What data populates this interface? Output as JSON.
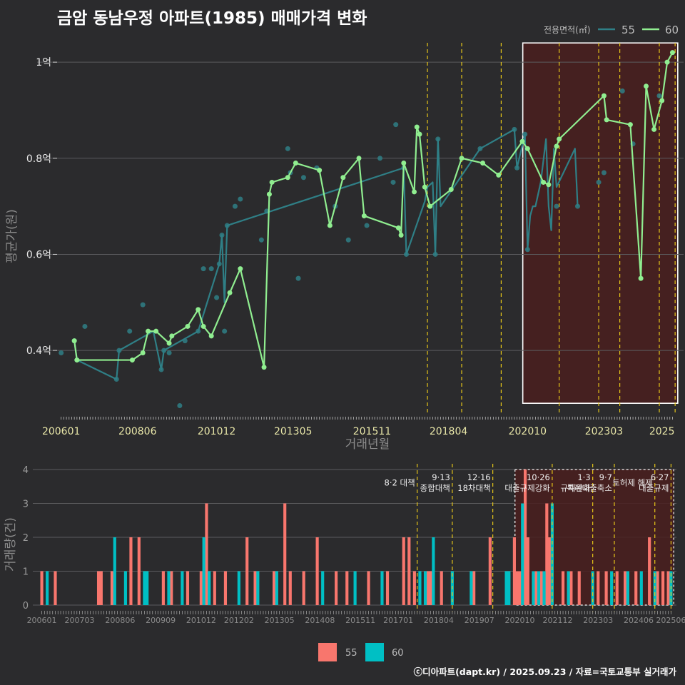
{
  "title": "금암 동남우정 아파트(1985) 매매가격 변화",
  "source": "ⓒ디아파트(dapt.kr) / 2025.09.23 / 자료=국토교통부 실거래가",
  "colors": {
    "s55_line": "#2f7f86",
    "s60_line": "#90ee90",
    "s55_bar": "#f8766d",
    "s60_bar": "#00bfc4",
    "event_line": "#e6c619",
    "highlight_box": "#4a1f1f",
    "grid": "#5b5b5e",
    "axis_text": "#e8e8e8",
    "tick_label_main": "#e8e6a8"
  },
  "chart_data": [
    {
      "type": "line",
      "title": "",
      "xlabel": "거래년월",
      "ylabel": "평균가(원)",
      "ylim": [
        0.265,
        1.07
      ],
      "yticks": [
        0.4,
        0.6,
        0.8,
        1.0
      ],
      "ytick_labels": [
        "0.4억",
        "0.6억",
        "0.8억",
        "1억"
      ],
      "xtick_labels": [
        "200601",
        "200806",
        "201012",
        "201305",
        "201511",
        "201804",
        "202010",
        "202303",
        "2025"
      ],
      "legend_title": "전용면적(㎡)",
      "legend_position": "top-right",
      "grid": true,
      "event_lines": [
        "2017-08",
        "2018-09",
        "2019-12",
        "2021-10",
        "2023-01",
        "2023-09",
        "2024-12",
        "2025-06"
      ],
      "highlight": {
        "x_start": "2020-09",
        "x_end": "2025-07",
        "y_start": 0.29,
        "y_end": 1.04
      },
      "series": [
        {
          "name": "55",
          "line": [
            [
              "2006-06",
              0.42
            ],
            [
              "2006-07",
              0.38
            ],
            [
              "2007-10",
              0.34
            ],
            [
              "2007-11",
              0.4
            ],
            [
              "2008-12",
              0.44
            ],
            [
              "2009-03",
              0.36
            ],
            [
              "2009-04",
              0.4
            ],
            [
              "2010-05",
              0.44
            ],
            [
              "2011-01",
              0.58
            ],
            [
              "2011-02",
              0.64
            ],
            [
              "2011-03",
              0.5
            ],
            [
              "2011-04",
              0.66
            ],
            [
              "2016-11",
              0.78
            ],
            [
              "2016-12",
              0.6
            ],
            [
              "2017-07",
              0.71
            ],
            [
              "2017-08",
              0.74
            ],
            [
              "2017-10",
              0.75
            ],
            [
              "2017-11",
              0.6
            ],
            [
              "2017-12",
              0.84
            ],
            [
              "2018-01",
              0.7
            ],
            [
              "2019-04",
              0.82
            ],
            [
              "2020-05",
              0.86
            ],
            [
              "2020-06",
              0.78
            ],
            [
              "2020-09",
              0.85
            ],
            [
              "2020-10",
              0.61
            ],
            [
              "2020-11",
              0.68
            ],
            [
              "2020-12",
              0.7
            ],
            [
              "2021-01",
              0.7
            ],
            [
              "2021-03",
              0.75
            ],
            [
              "2021-05",
              0.84
            ],
            [
              "2021-06",
              0.7
            ],
            [
              "2021-07",
              0.65
            ],
            [
              "2021-08",
              0.82
            ],
            [
              "2021-09",
              0.74
            ],
            [
              "2022-04",
              0.82
            ],
            [
              "2022-05",
              0.7
            ]
          ],
          "points": [
            [
              "2006-01",
              0.395
            ],
            [
              "2006-06",
              0.42
            ],
            [
              "2006-07",
              0.38
            ],
            [
              "2006-10",
              0.45
            ],
            [
              "2007-10",
              0.34
            ],
            [
              "2007-11",
              0.4
            ],
            [
              "2008-03",
              0.44
            ],
            [
              "2008-08",
              0.495
            ],
            [
              "2009-03",
              0.36
            ],
            [
              "2009-04",
              0.4
            ],
            [
              "2009-06",
              0.395
            ],
            [
              "2009-10",
              0.285
            ],
            [
              "2009-12",
              0.42
            ],
            [
              "2010-05",
              0.44
            ],
            [
              "2010-07",
              0.57
            ],
            [
              "2010-10",
              0.57
            ],
            [
              "2010-12",
              0.51
            ],
            [
              "2011-01",
              0.58
            ],
            [
              "2011-02",
              0.64
            ],
            [
              "2011-03",
              0.44
            ],
            [
              "2011-04",
              0.66
            ],
            [
              "2011-07",
              0.7
            ],
            [
              "2011-09",
              0.715
            ],
            [
              "2012-05",
              0.63
            ],
            [
              "2012-07",
              0.69
            ],
            [
              "2013-03",
              0.82
            ],
            [
              "2013-04",
              0.77
            ],
            [
              "2013-07",
              0.55
            ],
            [
              "2013-09",
              0.76
            ],
            [
              "2014-02",
              0.78
            ],
            [
              "2014-09",
              0.7
            ],
            [
              "2015-02",
              0.63
            ],
            [
              "2015-09",
              0.66
            ],
            [
              "2016-02",
              0.8
            ],
            [
              "2016-07",
              0.75
            ],
            [
              "2016-08",
              0.87
            ],
            [
              "2016-11",
              0.78
            ],
            [
              "2016-12",
              0.6
            ],
            [
              "2017-11",
              0.6
            ],
            [
              "2017-12",
              0.84
            ],
            [
              "2019-04",
              0.82
            ],
            [
              "2020-05",
              0.86
            ],
            [
              "2020-06",
              0.78
            ],
            [
              "2020-09",
              0.85
            ],
            [
              "2020-10",
              0.61
            ],
            [
              "2021-09",
              0.7
            ],
            [
              "2022-05",
              0.7
            ],
            [
              "2023-01",
              0.75
            ],
            [
              "2023-03",
              0.77
            ],
            [
              "2023-10",
              0.94
            ],
            [
              "2024-02",
              0.83
            ],
            [
              "2024-12",
              0.93
            ]
          ]
        },
        {
          "name": "60",
          "line": [
            [
              "2006-06",
              0.42
            ],
            [
              "2006-07",
              0.38
            ],
            [
              "2008-04",
              0.38
            ],
            [
              "2008-08",
              0.395
            ],
            [
              "2008-10",
              0.44
            ],
            [
              "2009-01",
              0.44
            ],
            [
              "2009-06",
              0.415
            ],
            [
              "2009-07",
              0.43
            ],
            [
              "2010-01",
              0.45
            ],
            [
              "2010-05",
              0.485
            ],
            [
              "2010-07",
              0.45
            ],
            [
              "2010-10",
              0.43
            ],
            [
              "2011-05",
              0.52
            ],
            [
              "2011-09",
              0.57
            ],
            [
              "2012-06",
              0.365
            ],
            [
              "2012-08",
              0.725
            ],
            [
              "2012-09",
              0.75
            ],
            [
              "2013-03",
              0.76
            ],
            [
              "2013-06",
              0.79
            ],
            [
              "2014-03",
              0.775
            ],
            [
              "2014-07",
              0.66
            ],
            [
              "2014-12",
              0.76
            ],
            [
              "2015-06",
              0.8
            ],
            [
              "2015-08",
              0.68
            ],
            [
              "2016-09",
              0.655
            ],
            [
              "2016-10",
              0.64
            ],
            [
              "2016-11",
              0.79
            ],
            [
              "2017-03",
              0.73
            ],
            [
              "2017-04",
              0.865
            ],
            [
              "2017-05",
              0.85
            ],
            [
              "2017-07",
              0.74
            ],
            [
              "2017-09",
              0.7
            ],
            [
              "2018-05",
              0.735
            ],
            [
              "2018-09",
              0.8
            ],
            [
              "2019-05",
              0.79
            ],
            [
              "2019-11",
              0.765
            ],
            [
              "2020-08",
              0.835
            ],
            [
              "2020-10",
              0.82
            ],
            [
              "2021-04",
              0.75
            ],
            [
              "2021-06",
              0.745
            ],
            [
              "2021-09",
              0.825
            ],
            [
              "2021-10",
              0.84
            ],
            [
              "2023-03",
              0.93
            ],
            [
              "2023-04",
              0.88
            ],
            [
              "2024-01",
              0.87
            ],
            [
              "2024-05",
              0.55
            ],
            [
              "2024-07",
              0.95
            ],
            [
              "2024-10",
              0.86
            ],
            [
              "2025-01",
              0.92
            ],
            [
              "2025-03",
              1.0
            ],
            [
              "2025-05",
              1.02
            ]
          ]
        }
      ]
    },
    {
      "type": "bar",
      "title": "",
      "xlabel": "",
      "ylabel": "거래량(건)",
      "ylim": [
        0,
        4
      ],
      "yticks": [
        0,
        1,
        2,
        3,
        4
      ],
      "xtick_labels": [
        "200601",
        "200703",
        "200806",
        "200909",
        "201012",
        "201202",
        "201305",
        "201408",
        "201511",
        "201701",
        "201804",
        "201907",
        "202010",
        "202112",
        "202303",
        "202406",
        "202506"
      ],
      "legend": [
        "55",
        "60"
      ],
      "legend_position": "bottom",
      "grid": true,
      "highlight": {
        "x_start": "2020-09",
        "x_end": "2025-07"
      },
      "event_lines": [
        {
          "x": "2017-08",
          "label": "8·2 대책"
        },
        {
          "x": "2018-09",
          "label": "9·13\n종합대책"
        },
        {
          "x": "2019-12",
          "label": "12·16\n18차대책"
        },
        {
          "x": "2021-10",
          "label": "10·26\n대출규제강화"
        },
        {
          "x": "2023-01",
          "label": "1·3\n규제완화"
        },
        {
          "x": "2023-09",
          "label": "9·7\n특례대출축소"
        },
        {
          "x": "2024-12",
          "label": "토허제 해제"
        },
        {
          "x": "2025-06",
          "label": "6·27\n대출규제"
        }
      ],
      "series": [
        {
          "name": "55",
          "bars": [
            [
              "2006-01",
              1
            ],
            [
              "2006-06",
              1
            ],
            [
              "2007-10",
              1
            ],
            [
              "2007-11",
              1
            ],
            [
              "2008-03",
              1
            ],
            [
              "2008-10",
              2
            ],
            [
              "2009-01",
              2
            ],
            [
              "2009-10",
              1
            ],
            [
              "2010-01",
              1
            ],
            [
              "2010-07",
              1
            ],
            [
              "2010-12",
              1
            ],
            [
              "2011-02",
              3
            ],
            [
              "2011-05",
              1
            ],
            [
              "2011-09",
              1
            ],
            [
              "2012-05",
              2
            ],
            [
              "2012-08",
              1
            ],
            [
              "2013-03",
              1
            ],
            [
              "2013-07",
              3
            ],
            [
              "2013-09",
              1
            ],
            [
              "2014-02",
              1
            ],
            [
              "2014-07",
              2
            ],
            [
              "2015-02",
              1
            ],
            [
              "2015-06",
              1
            ],
            [
              "2016-02",
              1
            ],
            [
              "2016-09",
              1
            ],
            [
              "2017-03",
              2
            ],
            [
              "2017-05",
              2
            ],
            [
              "2017-07",
              1
            ],
            [
              "2017-12",
              1
            ],
            [
              "2018-01",
              1
            ],
            [
              "2018-05",
              1
            ],
            [
              "2019-05",
              1
            ],
            [
              "2019-11",
              2
            ],
            [
              "2020-08",
              2
            ],
            [
              "2020-09",
              1
            ],
            [
              "2020-10",
              1
            ],
            [
              "2020-12",
              4
            ],
            [
              "2021-01",
              2
            ],
            [
              "2021-04",
              1
            ],
            [
              "2021-06",
              1
            ],
            [
              "2021-08",
              3
            ],
            [
              "2021-09",
              2
            ],
            [
              "2022-02",
              1
            ],
            [
              "2022-05",
              1
            ],
            [
              "2022-08",
              1
            ],
            [
              "2023-03",
              1
            ],
            [
              "2023-06",
              1
            ],
            [
              "2023-10",
              1
            ],
            [
              "2024-01",
              1
            ],
            [
              "2024-05",
              1
            ],
            [
              "2024-10",
              2
            ],
            [
              "2025-01",
              1
            ],
            [
              "2025-03",
              1
            ],
            [
              "2025-05",
              1
            ]
          ]
        },
        {
          "name": "60",
          "bars": [
            [
              "2006-03",
              1
            ],
            [
              "2008-04",
              2
            ],
            [
              "2008-08",
              1
            ],
            [
              "2009-03",
              1
            ],
            [
              "2009-04",
              1
            ],
            [
              "2009-12",
              1
            ],
            [
              "2010-05",
              1
            ],
            [
              "2011-01",
              2
            ],
            [
              "2011-03",
              1
            ],
            [
              "2012-02",
              1
            ],
            [
              "2012-09",
              1
            ],
            [
              "2013-04",
              1
            ],
            [
              "2014-09",
              1
            ],
            [
              "2015-09",
              1
            ],
            [
              "2016-07",
              1
            ],
            [
              "2017-09",
              1
            ],
            [
              "2017-11",
              1
            ],
            [
              "2018-02",
              2
            ],
            [
              "2018-09",
              1
            ],
            [
              "2019-04",
              1
            ],
            [
              "2020-05",
              1
            ],
            [
              "2020-06",
              1
            ],
            [
              "2020-11",
              3
            ],
            [
              "2021-03",
              1
            ],
            [
              "2021-05",
              1
            ],
            [
              "2021-07",
              1
            ],
            [
              "2021-10",
              3
            ],
            [
              "2022-04",
              1
            ],
            [
              "2023-01",
              1
            ],
            [
              "2023-08",
              1
            ],
            [
              "2024-02",
              1
            ],
            [
              "2024-07",
              1
            ],
            [
              "2024-12",
              1
            ],
            [
              "2025-06",
              1
            ]
          ]
        }
      ]
    }
  ]
}
